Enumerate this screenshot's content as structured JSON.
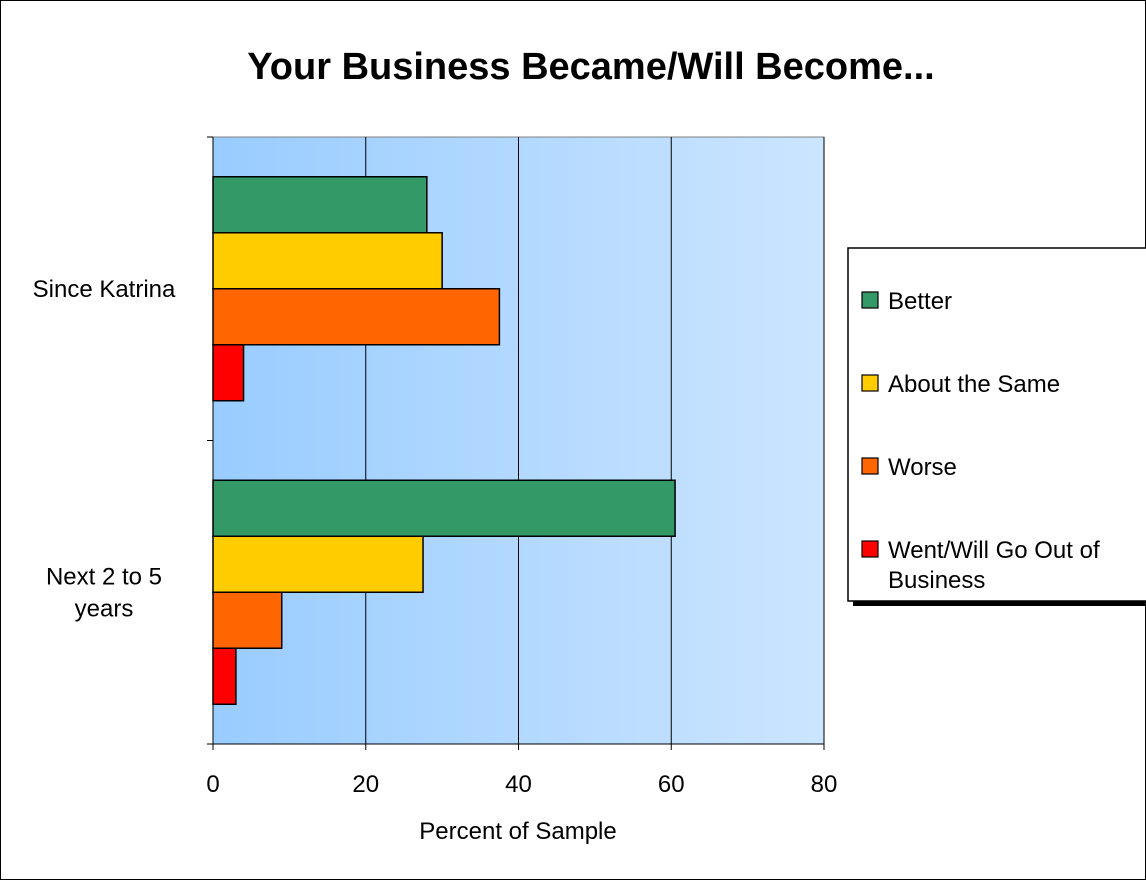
{
  "chart_data": {
    "type": "bar",
    "orientation": "horizontal",
    "title": "Your Business Became/Will Become...",
    "xlabel": "Percent of Sample",
    "ylabel": "",
    "xlim": [
      0,
      80
    ],
    "x_ticks": [
      "0",
      "20",
      "40",
      "60",
      "80"
    ],
    "grid": true,
    "legend_position": "right",
    "categories": [
      {
        "lines": [
          "Since Katrina"
        ]
      },
      {
        "lines": [
          "Next 2 to 5",
          "years"
        ]
      }
    ],
    "series": [
      {
        "name": [
          "Better"
        ],
        "color": "#339966",
        "values": [
          28,
          60.5
        ]
      },
      {
        "name": [
          "About the Same"
        ],
        "color": "#FFCC00",
        "values": [
          30,
          27.5
        ]
      },
      {
        "name": [
          "Worse"
        ],
        "color": "#FF6600",
        "values": [
          37.5,
          9
        ]
      },
      {
        "name": [
          "Went/Will Go Out of",
          "Business"
        ],
        "color": "#FF0000",
        "values": [
          4,
          3
        ]
      }
    ],
    "plot_background": [
      "#99CCFF",
      "#CCE5FF"
    ]
  }
}
